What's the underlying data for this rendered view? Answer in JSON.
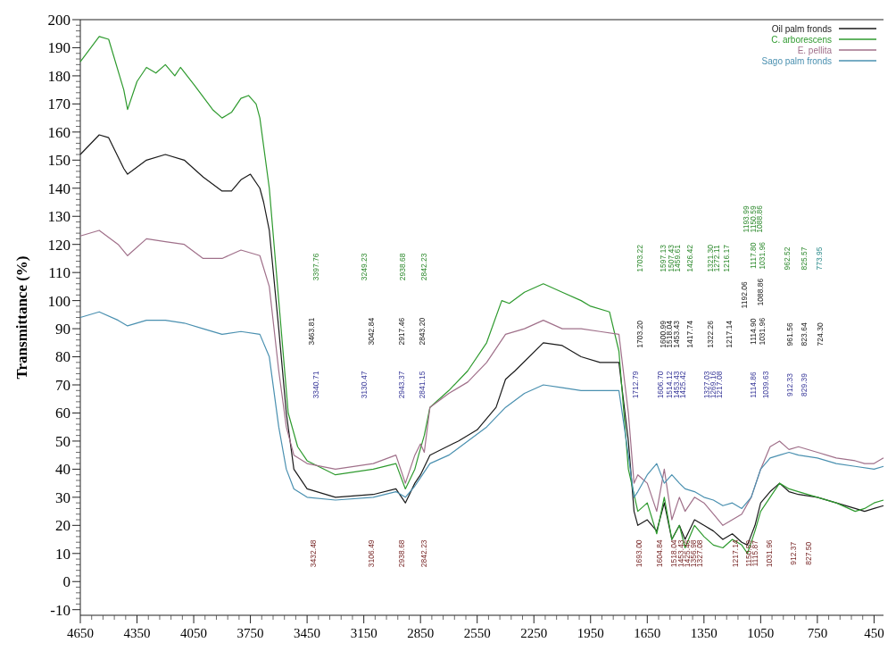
{
  "chart_data": {
    "type": "line",
    "ylabel": "Transmittance (%)",
    "xlim": [
      4650,
      400
    ],
    "xticks": [
      4650,
      4350,
      4050,
      3750,
      3450,
      3150,
      2850,
      2550,
      2250,
      1950,
      1650,
      1350,
      1050,
      750,
      450
    ],
    "ylim": [
      -12,
      200
    ],
    "yticks": [
      -10,
      0,
      10,
      20,
      30,
      40,
      50,
      60,
      70,
      80,
      90,
      100,
      110,
      120,
      130,
      140,
      150,
      160,
      170,
      180,
      190,
      200
    ],
    "legend": "top right",
    "grid": false,
    "series": [
      {
        "name": "Oil palm fronds",
        "color": "#1a1a1a",
        "x": [
          4650,
          4550,
          4500,
          4420,
          4400,
          4300,
          4200,
          4100,
          4000,
          3900,
          3850,
          3800,
          3750,
          3700,
          3680,
          3650,
          3600,
          3560,
          3520,
          3450,
          3300,
          3100,
          2980,
          2930,
          2880,
          2850,
          2800,
          2650,
          2550,
          2450,
          2400,
          2350,
          2200,
          2100,
          2000,
          1900,
          1800,
          1750,
          1720,
          1700,
          1650,
          1600,
          1560,
          1520,
          1480,
          1450,
          1400,
          1350,
          1300,
          1250,
          1200,
          1150,
          1120,
          1080,
          1050,
          1000,
          950,
          900,
          850,
          750,
          650,
          550,
          500,
          450,
          400
        ],
        "values": [
          152,
          159,
          158,
          147,
          145,
          150,
          152,
          150,
          144,
          139,
          139,
          143,
          145,
          140,
          135,
          125,
          90,
          60,
          40,
          33,
          30,
          31,
          33,
          28,
          35,
          38,
          45,
          50,
          54,
          62,
          72,
          75,
          85,
          84,
          80,
          78,
          78,
          50,
          25,
          20,
          22,
          18,
          28,
          15,
          20,
          15,
          22,
          20,
          18,
          15,
          17,
          14,
          13,
          20,
          28,
          32,
          35,
          32,
          31,
          30,
          28,
          26,
          25,
          26,
          27
        ]
      },
      {
        "name": "C. arborescens",
        "color": "#2e9a2e",
        "x": [
          4650,
          4550,
          4500,
          4420,
          4400,
          4350,
          4300,
          4250,
          4200,
          4150,
          4120,
          4050,
          3950,
          3900,
          3850,
          3800,
          3760,
          3720,
          3700,
          3650,
          3600,
          3550,
          3500,
          3450,
          3300,
          3100,
          2980,
          2930,
          2880,
          2860,
          2830,
          2800,
          2700,
          2600,
          2500,
          2420,
          2380,
          2300,
          2200,
          2100,
          2000,
          1950,
          1850,
          1800,
          1750,
          1700,
          1650,
          1600,
          1560,
          1520,
          1480,
          1450,
          1400,
          1350,
          1300,
          1250,
          1200,
          1150,
          1120,
          1080,
          1050,
          1000,
          950,
          900,
          850,
          750,
          650,
          550,
          500,
          450,
          400
        ],
        "values": [
          185,
          194,
          193,
          175,
          168,
          178,
          183,
          181,
          184,
          180,
          183,
          177,
          168,
          165,
          167,
          172,
          173,
          170,
          165,
          140,
          100,
          60,
          48,
          43,
          38,
          40,
          42,
          33,
          40,
          45,
          52,
          62,
          68,
          75,
          85,
          100,
          99,
          103,
          106,
          103,
          100,
          98,
          96,
          82,
          40,
          25,
          28,
          17,
          30,
          15,
          20,
          12,
          20,
          16,
          13,
          12,
          15,
          13,
          10,
          18,
          25,
          30,
          35,
          33,
          32,
          30,
          28,
          25,
          26,
          28,
          29
        ]
      },
      {
        "name": "E. pellita",
        "color": "#a0708a",
        "x": [
          4650,
          4550,
          4450,
          4400,
          4300,
          4200,
          4100,
          4000,
          3900,
          3800,
          3700,
          3650,
          3600,
          3560,
          3520,
          3450,
          3300,
          3100,
          2980,
          2930,
          2880,
          2850,
          2830,
          2800,
          2700,
          2600,
          2500,
          2400,
          2300,
          2200,
          2100,
          2000,
          1900,
          1800,
          1750,
          1720,
          1700,
          1650,
          1600,
          1560,
          1520,
          1480,
          1450,
          1400,
          1350,
          1300,
          1250,
          1200,
          1150,
          1100,
          1050,
          1000,
          950,
          900,
          850,
          750,
          650,
          550,
          500,
          450,
          400
        ],
        "values": [
          123,
          125,
          120,
          116,
          122,
          121,
          120,
          115,
          115,
          118,
          116,
          105,
          75,
          55,
          45,
          42,
          40,
          42,
          45,
          35,
          45,
          49,
          46,
          62,
          67,
          71,
          78,
          88,
          90,
          93,
          90,
          90,
          89,
          88,
          60,
          35,
          38,
          35,
          25,
          40,
          22,
          30,
          25,
          30,
          28,
          24,
          20,
          22,
          24,
          30,
          40,
          48,
          50,
          47,
          48,
          46,
          44,
          43,
          42,
          42,
          44
        ]
      },
      {
        "name": "Sago palm fronds",
        "color": "#4a90b0",
        "x": [
          4650,
          4550,
          4450,
          4400,
          4300,
          4200,
          4100,
          4000,
          3900,
          3800,
          3700,
          3650,
          3600,
          3560,
          3520,
          3450,
          3300,
          3100,
          2980,
          2930,
          2880,
          2850,
          2800,
          2700,
          2600,
          2500,
          2400,
          2300,
          2200,
          2100,
          2000,
          1900,
          1800,
          1750,
          1720,
          1700,
          1650,
          1600,
          1560,
          1520,
          1480,
          1450,
          1400,
          1350,
          1300,
          1250,
          1200,
          1150,
          1100,
          1050,
          1000,
          950,
          900,
          850,
          750,
          650,
          550,
          450,
          400
        ],
        "values": [
          94,
          96,
          93,
          91,
          93,
          93,
          92,
          90,
          88,
          89,
          88,
          80,
          55,
          40,
          33,
          30,
          29,
          30,
          32,
          30,
          34,
          37,
          42,
          45,
          50,
          55,
          62,
          67,
          70,
          69,
          68,
          68,
          68,
          45,
          30,
          32,
          38,
          42,
          35,
          38,
          35,
          33,
          32,
          30,
          29,
          27,
          28,
          26,
          30,
          40,
          44,
          45,
          46,
          45,
          44,
          42,
          41,
          40,
          41
        ]
      }
    ],
    "annotations": [
      "3397.76",
      "3249.23",
      "2938.68",
      "2842.23",
      "3463.81",
      "3042.84",
      "2917.46",
      "2843.20",
      "3340.71",
      "3130.47",
      "2943.37",
      "2841.15",
      "3432.48",
      "3106.49",
      "2938.68",
      "2842.23",
      "1703.22",
      "1597.13",
      "1507.43",
      "1459.61",
      "1426.42",
      "1321.30",
      "1272.11",
      "1216.17",
      "1117.80",
      "1031.96",
      "1193.99",
      "1150.59",
      "1088.86",
      "962.52",
      "825.57",
      "773.95",
      "1703.20",
      "1600.99",
      "1518.04",
      "1453.43",
      "1417.74",
      "1322.26",
      "1217.14",
      "1114.90",
      "1031.96",
      "1192.06",
      "1088.86",
      "961.56",
      "823.64",
      "724.30",
      "1712.79",
      "1606.70",
      "1514.12",
      "1453.43",
      "1425.42",
      "1327.03",
      "1269.16",
      "1217.08",
      "1114.86",
      "1039.63",
      "912.33",
      "829.39",
      "1693.00",
      "1604.84",
      "1518.04",
      "1453.43",
      "1425.46",
      "1356.98",
      "1327.08",
      "1217.14",
      "1150.59",
      "1115.87",
      "1031.96",
      "912.37",
      "827.50"
    ]
  }
}
